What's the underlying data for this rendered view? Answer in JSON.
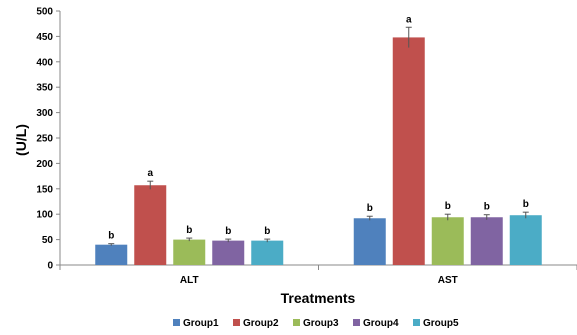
{
  "chart_data": {
    "type": "bar",
    "title": "",
    "xlabel": "Treatments",
    "ylabel": "(U/L)",
    "ylim": [
      0,
      500
    ],
    "yticks": [
      0,
      50,
      100,
      150,
      200,
      250,
      300,
      350,
      400,
      450,
      500
    ],
    "grid": false,
    "legend_position": "bottom",
    "categories": [
      "ALT",
      "AST"
    ],
    "series": [
      {
        "name": "Group1",
        "color": "#4F81BD",
        "values": [
          40,
          92
        ],
        "errors": [
          2,
          4
        ],
        "labels": [
          "b",
          "b"
        ]
      },
      {
        "name": "Group2",
        "color": "#C0504D",
        "values": [
          157,
          448
        ],
        "errors": [
          8,
          20
        ],
        "labels": [
          "a",
          "a"
        ]
      },
      {
        "name": "Group3",
        "color": "#9BBB59",
        "values": [
          50,
          94
        ],
        "errors": [
          3,
          6
        ],
        "labels": [
          "b",
          "b"
        ]
      },
      {
        "name": "Group4",
        "color": "#8064A2",
        "values": [
          48,
          94
        ],
        "errors": [
          3,
          5
        ],
        "labels": [
          "b",
          "b"
        ]
      },
      {
        "name": "Group5",
        "color": "#4BACC6",
        "values": [
          48,
          98
        ],
        "errors": [
          3,
          6
        ],
        "labels": [
          "b",
          "b"
        ]
      }
    ]
  }
}
